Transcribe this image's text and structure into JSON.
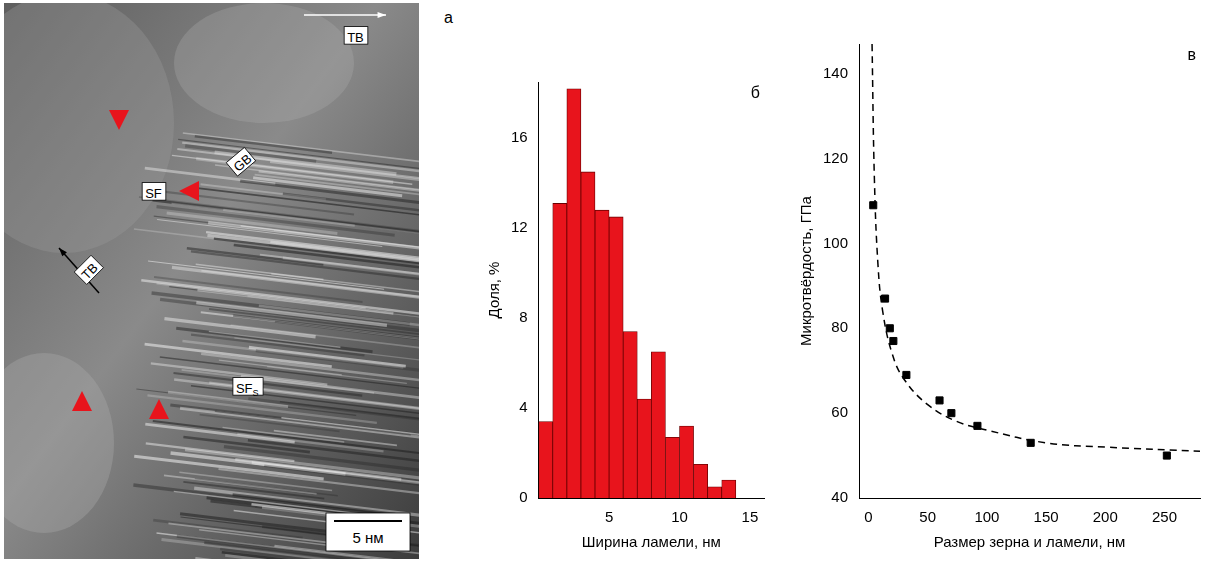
{
  "image_panel": {
    "letter": "а",
    "labels": [
      {
        "text": "TB"
      },
      {
        "text": "SF"
      },
      {
        "text": "GB"
      },
      {
        "text": "TB"
      },
      {
        "text": "SF",
        "subscript": "S"
      }
    ],
    "scale_bar": "5 нм"
  },
  "chart_data": [
    {
      "type": "histogram",
      "letter": "б",
      "bins": [
        0,
        1,
        2,
        3,
        4,
        5,
        6,
        7,
        8,
        9,
        10,
        11,
        12,
        13,
        14,
        15
      ],
      "values": [
        3.4,
        13.1,
        18.2,
        14.5,
        12.8,
        12.5,
        7.4,
        4.4,
        6.5,
        2.7,
        3.2,
        1.5,
        0.5,
        0.8,
        0
      ],
      "color": "#e8141c",
      "x_label": "Ширина ламели, нм",
      "y_label": "Доля, %",
      "xlim": [
        0,
        16
      ],
      "xticks": [
        5,
        10,
        15
      ],
      "ylim": [
        0,
        18.5
      ],
      "yticks": [
        0,
        4,
        8,
        12,
        16
      ],
      "grid": false
    },
    {
      "type": "scatter",
      "letter": "в",
      "x": [
        4,
        14,
        18,
        21,
        32,
        60,
        70,
        92,
        137,
        252
      ],
      "values": [
        109,
        87,
        80,
        77,
        69,
        63,
        60,
        57,
        53,
        50
      ],
      "marker": "square",
      "color": "#000000",
      "curve": {
        "x": [
          3,
          5,
          8,
          12,
          20,
          30,
          50,
          75,
          100,
          150,
          200,
          280
        ],
        "values": [
          147,
          115,
          95,
          84,
          74,
          68,
          62,
          58,
          56,
          53,
          52,
          51
        ],
        "line_style": "dashed",
        "color": "#000000"
      },
      "x_label": "Размер зерна и ламели, нм",
      "y_label": "Микротвёрдость, ГПа",
      "xlim": [
        -8,
        280
      ],
      "xticks": [
        0,
        50,
        100,
        150,
        200,
        250
      ],
      "ylim": [
        40,
        147
      ],
      "yticks": [
        40,
        60,
        80,
        100,
        120,
        140
      ],
      "grid": false
    }
  ]
}
